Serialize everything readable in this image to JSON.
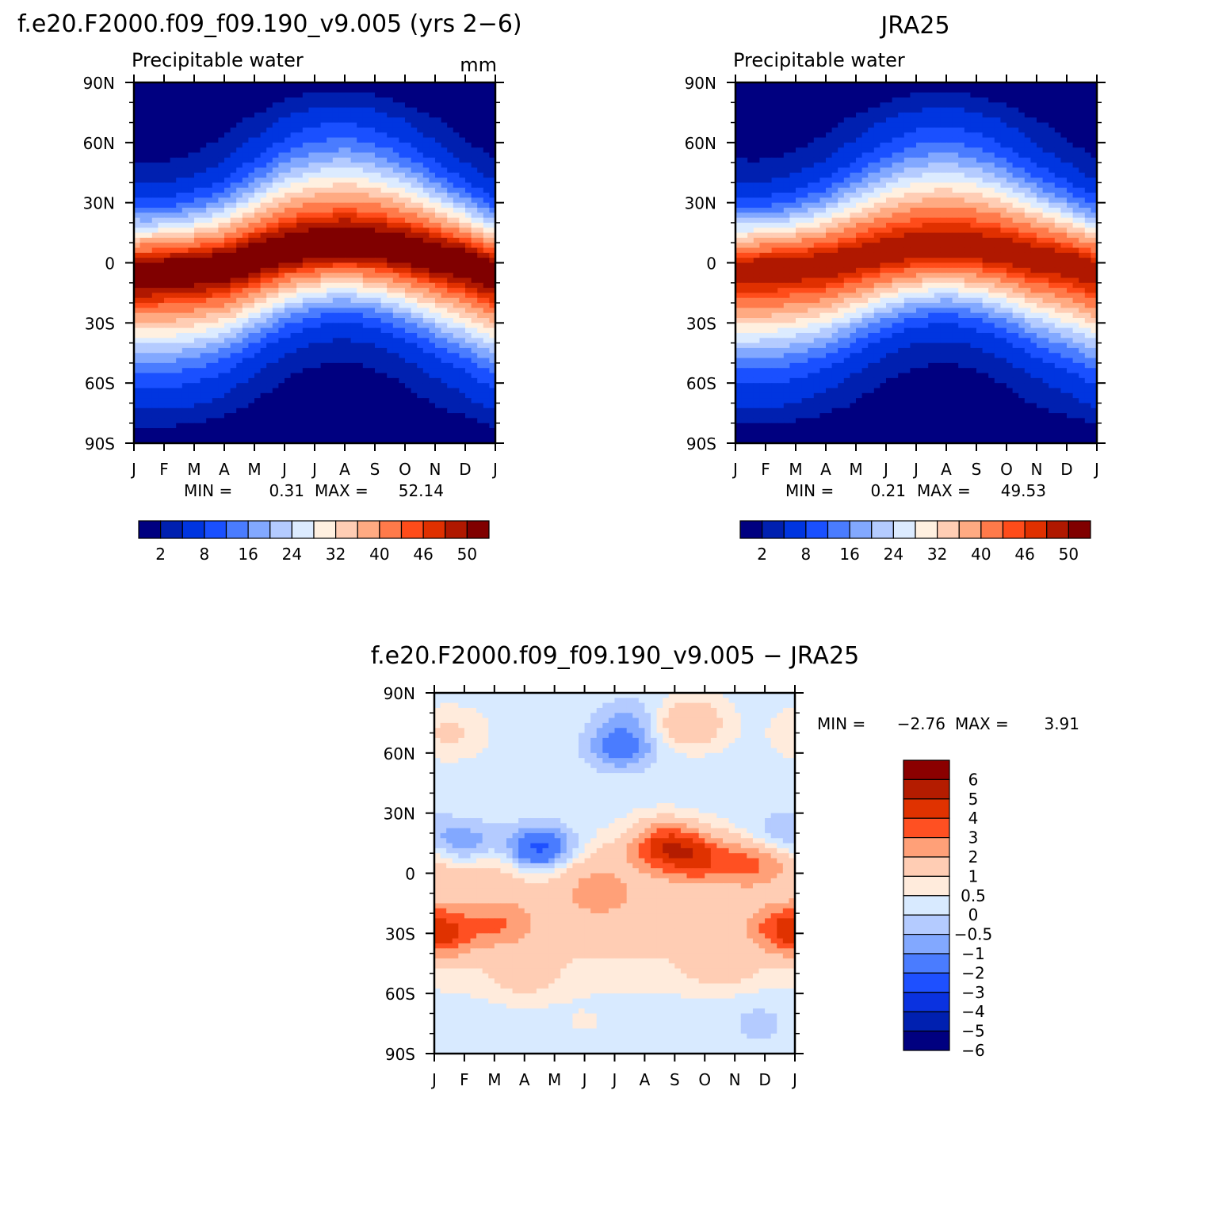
{
  "chart_data": [
    {
      "type": "heatmap",
      "title": "f.e20.F2000.f09_f09.190_v9.005 (yrs 2−6)",
      "subtitle_left": "Precipitable water",
      "subtitle_right": "mm",
      "x_ticks": [
        "J",
        "F",
        "M",
        "A",
        "M",
        "J",
        "J",
        "A",
        "S",
        "O",
        "N",
        "D",
        "J"
      ],
      "y_ticks": [
        "90N",
        "60N",
        "30N",
        "0",
        "30S",
        "60S",
        "90S"
      ],
      "y_values": [
        90,
        60,
        30,
        0,
        -30,
        -60,
        -90
      ],
      "xlim": [
        0,
        12
      ],
      "ylim": [
        -90,
        90
      ],
      "min_label": "MIN =",
      "min_value": "0.31",
      "max_label": "MAX =",
      "max_value": "52.14",
      "colorbar": {
        "orientation": "horizontal",
        "tick_labels": [
          "2",
          "8",
          "16",
          "24",
          "32",
          "40",
          "46",
          "50"
        ],
        "colors": [
          "#000080",
          "#0020b0",
          "#0035e0",
          "#1a50ff",
          "#4a7cff",
          "#82a8ff",
          "#b4cbff",
          "#dcebff",
          "#fff0e0",
          "#ffcdb4",
          "#ffaa82",
          "#ff7a4a",
          "#ff4c1a",
          "#e03000",
          "#b01800",
          "#800000"
        ]
      },
      "peak_lat_by_month": [
        -5,
        -4,
        -3,
        -2,
        2,
        6,
        8,
        9,
        8,
        6,
        3,
        0,
        -5
      ],
      "peak_value": 52.14
    },
    {
      "type": "heatmap",
      "title": "JRA25",
      "subtitle_left": "Precipitable water",
      "x_ticks": [
        "J",
        "F",
        "M",
        "A",
        "M",
        "J",
        "J",
        "A",
        "S",
        "O",
        "N",
        "D",
        "J"
      ],
      "y_ticks": [
        "90N",
        "60N",
        "30N",
        "0",
        "30S",
        "60S",
        "90S"
      ],
      "y_values": [
        90,
        60,
        30,
        0,
        -30,
        -60,
        -90
      ],
      "xlim": [
        0,
        12
      ],
      "ylim": [
        -90,
        90
      ],
      "min_label": "MIN =",
      "min_value": "0.21",
      "max_label": "MAX =",
      "max_value": "49.53",
      "colorbar": {
        "orientation": "horizontal",
        "tick_labels": [
          "2",
          "8",
          "16",
          "24",
          "32",
          "40",
          "46",
          "50"
        ],
        "colors": [
          "#000080",
          "#0020b0",
          "#0035e0",
          "#1a50ff",
          "#4a7cff",
          "#82a8ff",
          "#b4cbff",
          "#dcebff",
          "#fff0e0",
          "#ffcdb4",
          "#ffaa82",
          "#ff7a4a",
          "#ff4c1a",
          "#e03000",
          "#b01800",
          "#800000"
        ]
      },
      "peak_lat_by_month": [
        -4,
        -3,
        -2,
        -1,
        2,
        5,
        7,
        8,
        7,
        5,
        2,
        0,
        -4
      ],
      "peak_value": 49.53
    },
    {
      "type": "heatmap",
      "title": "f.e20.F2000.f09_f09.190_v9.005 − JRA25",
      "x_ticks": [
        "J",
        "F",
        "M",
        "A",
        "M",
        "J",
        "J",
        "A",
        "S",
        "O",
        "N",
        "D",
        "J"
      ],
      "y_ticks": [
        "90N",
        "60N",
        "30N",
        "0",
        "30S",
        "60S",
        "90S"
      ],
      "y_values": [
        90,
        60,
        30,
        0,
        -30,
        -60,
        -90
      ],
      "xlim": [
        0,
        12
      ],
      "ylim": [
        -90,
        90
      ],
      "min_label": "MIN =",
      "min_value": "−2.76",
      "max_label": "MAX =",
      "max_value": "3.91",
      "colorbar": {
        "orientation": "vertical",
        "tick_labels": [
          "6",
          "5",
          "4",
          "3",
          "2",
          "1",
          "0.5",
          "0",
          "−0.5",
          "−1",
          "−2",
          "−3",
          "−4",
          "−5",
          "−6"
        ],
        "colors": [
          "#8b0000",
          "#b41c00",
          "#e03200",
          "#ff5022",
          "#ffa078",
          "#ffcdb4",
          "#ffebdc",
          "#d8eaff",
          "#b4cbff",
          "#82a8ff",
          "#4a7cff",
          "#1e50ff",
          "#0a32e0",
          "#0020b0",
          "#000080"
        ]
      },
      "anomaly_features": [
        {
          "month": 3.5,
          "lat": 12,
          "value": -2.76
        },
        {
          "month": 6.2,
          "lat": 63,
          "value": -1.6
        },
        {
          "month": 6.5,
          "lat": 76,
          "value": -0.8
        },
        {
          "month": 1.0,
          "lat": 15,
          "value": -1.2
        },
        {
          "month": 7.7,
          "lat": 14,
          "value": 3.91
        },
        {
          "month": 8.7,
          "lat": 8,
          "value": 3.5
        },
        {
          "month": 10.5,
          "lat": 5,
          "value": 2.5
        },
        {
          "month": 0.3,
          "lat": -30,
          "value": 3.0
        },
        {
          "month": 11.7,
          "lat": -27,
          "value": 2.8
        },
        {
          "month": 2.2,
          "lat": -25,
          "value": 2.3
        },
        {
          "month": 8.5,
          "lat": 75,
          "value": 1.8
        },
        {
          "month": 5.5,
          "lat": -10,
          "value": 2.0
        },
        {
          "month": 3.0,
          "lat": -50,
          "value": 1.2
        },
        {
          "month": 9.5,
          "lat": -45,
          "value": 1.3
        },
        {
          "month": 10.8,
          "lat": -75,
          "value": -0.4
        },
        {
          "month": 11.5,
          "lat": 20,
          "value": -0.6
        },
        {
          "month": 0.5,
          "lat": 70,
          "value": 0.9
        },
        {
          "month": 5.0,
          "lat": -75,
          "value": 0.3
        }
      ]
    }
  ]
}
